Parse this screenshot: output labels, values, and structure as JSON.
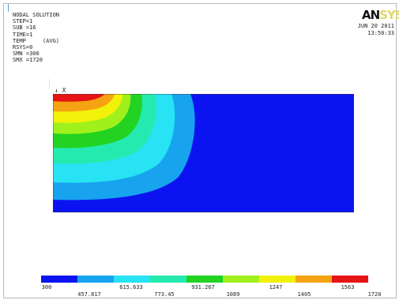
{
  "header": {
    "title": "NODAL SOLUTION",
    "step": "STEP=1",
    "sub": "SUB =16",
    "time": "TIME=1",
    "temp": "TEMP     (AVG)",
    "rsys": "RSYS=0",
    "smn": "SMN =300",
    "smx": "SMX =1720"
  },
  "logo": {
    "main": "AN",
    "tail": "SYS"
  },
  "timestamp": {
    "date": "JUN 20 2011",
    "time": "13:50:33"
  },
  "axis_label": "X",
  "legend": {
    "colors": [
      "#0b14f0",
      "#18a3ee",
      "#27e3f4",
      "#25eab0",
      "#22d322",
      "#a0f01c",
      "#f2f10a",
      "#f5a312",
      "#e51515"
    ],
    "labels_top": [
      "300",
      "615.633",
      "931.267",
      "1247",
      "1563"
    ],
    "labels_bottom": [
      "457.817",
      "773.45",
      "1089",
      "1405",
      "1720"
    ]
  },
  "contour": {
    "colors": [
      "#0b14f0",
      "#18a3ee",
      "#27e3f4",
      "#25eab0",
      "#22d322",
      "#a0f01c",
      "#f2f10a",
      "#f5a312",
      "#e51515"
    ]
  }
}
